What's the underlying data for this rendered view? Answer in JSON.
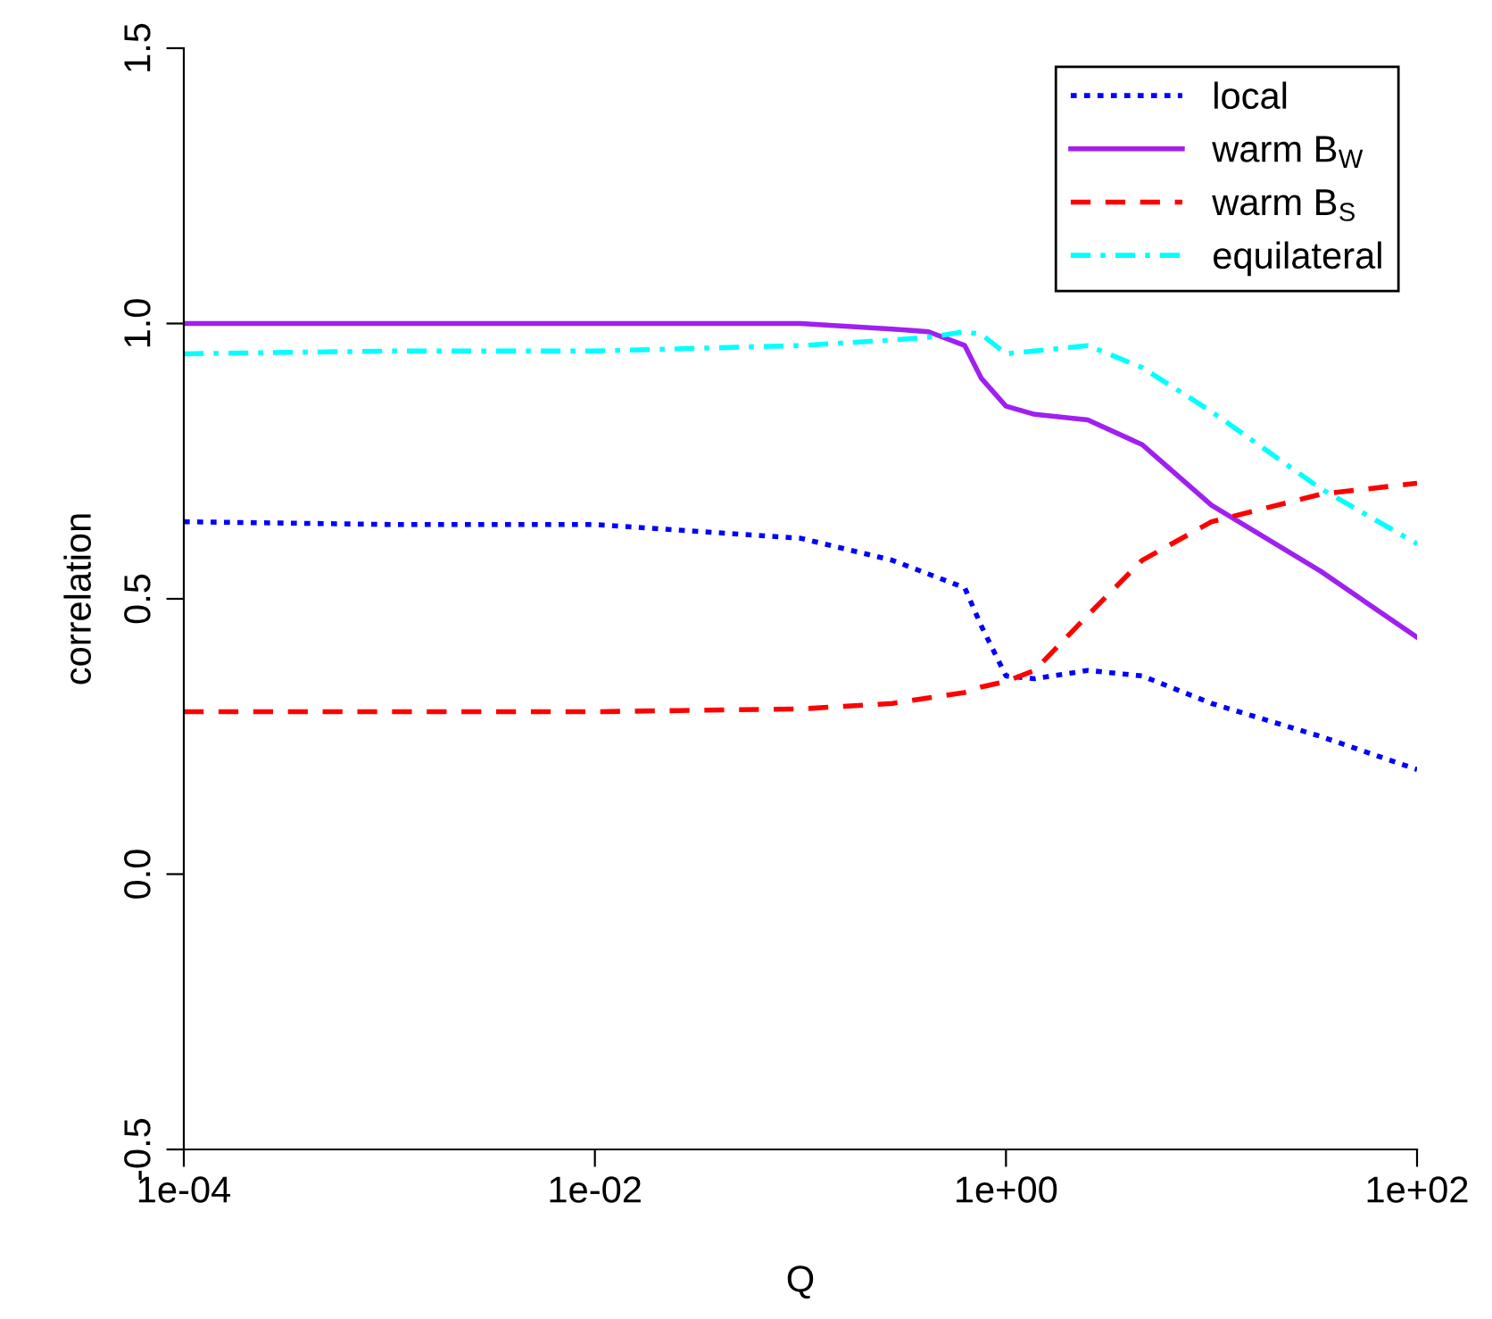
{
  "chart_data": {
    "type": "line",
    "xlabel": "Q",
    "ylabel": "correlation",
    "log": "x",
    "xlim": [
      0.0001,
      100
    ],
    "xticks": [
      {
        "value": 0.0001,
        "label": "1e-04"
      },
      {
        "value": 0.01,
        "label": "1e-02"
      },
      {
        "value": 1,
        "label": "1e+00"
      },
      {
        "value": 100,
        "label": "1e+02"
      }
    ],
    "ylim": [
      -0.5,
      1.5
    ],
    "yticks": [
      -0.5,
      {
        "value": 0,
        "label": "0.0"
      },
      0.5,
      {
        "value": 1,
        "label": "1.0"
      },
      1.5
    ],
    "grid": false,
    "legend": "top right",
    "x": [
      0.0001,
      0.001,
      0.01,
      0.1,
      0.28,
      0.42,
      0.63,
      0.76,
      1,
      1.38,
      2.5,
      4.6,
      10,
      34,
      100
    ],
    "series": [
      {
        "name": "local",
        "color": "#0000ff",
        "line_style": "dotted",
        "values": [
          0.64,
          0.635,
          0.635,
          0.61,
          0.57,
          0.545,
          0.52,
          0.45,
          0.36,
          0.355,
          0.37,
          0.36,
          0.31,
          0.25,
          0.19
        ]
      },
      {
        "name": "warm B$_{W}$",
        "color": "#a020f0",
        "line_style": "solid",
        "values": [
          1.0,
          1.0,
          1.0,
          1.0,
          0.99,
          0.985,
          0.96,
          0.9,
          0.85,
          0.835,
          0.825,
          0.78,
          0.67,
          0.55,
          0.43
        ]
      },
      {
        "name": "warm B$_{S}$",
        "color": "#ff0000",
        "line_style": "dashed",
        "values": [
          0.295,
          0.295,
          0.295,
          0.3,
          0.31,
          0.32,
          0.33,
          0.34,
          0.35,
          0.37,
          0.47,
          0.57,
          0.64,
          0.69,
          0.71
        ]
      },
      {
        "name": "equilateral",
        "color": "#00ffff",
        "line_style": "dashdot",
        "values": [
          0.945,
          0.95,
          0.95,
          0.96,
          0.97,
          0.975,
          0.985,
          0.98,
          0.945,
          0.95,
          0.96,
          0.92,
          0.84,
          0.7,
          0.6
        ]
      }
    ]
  }
}
